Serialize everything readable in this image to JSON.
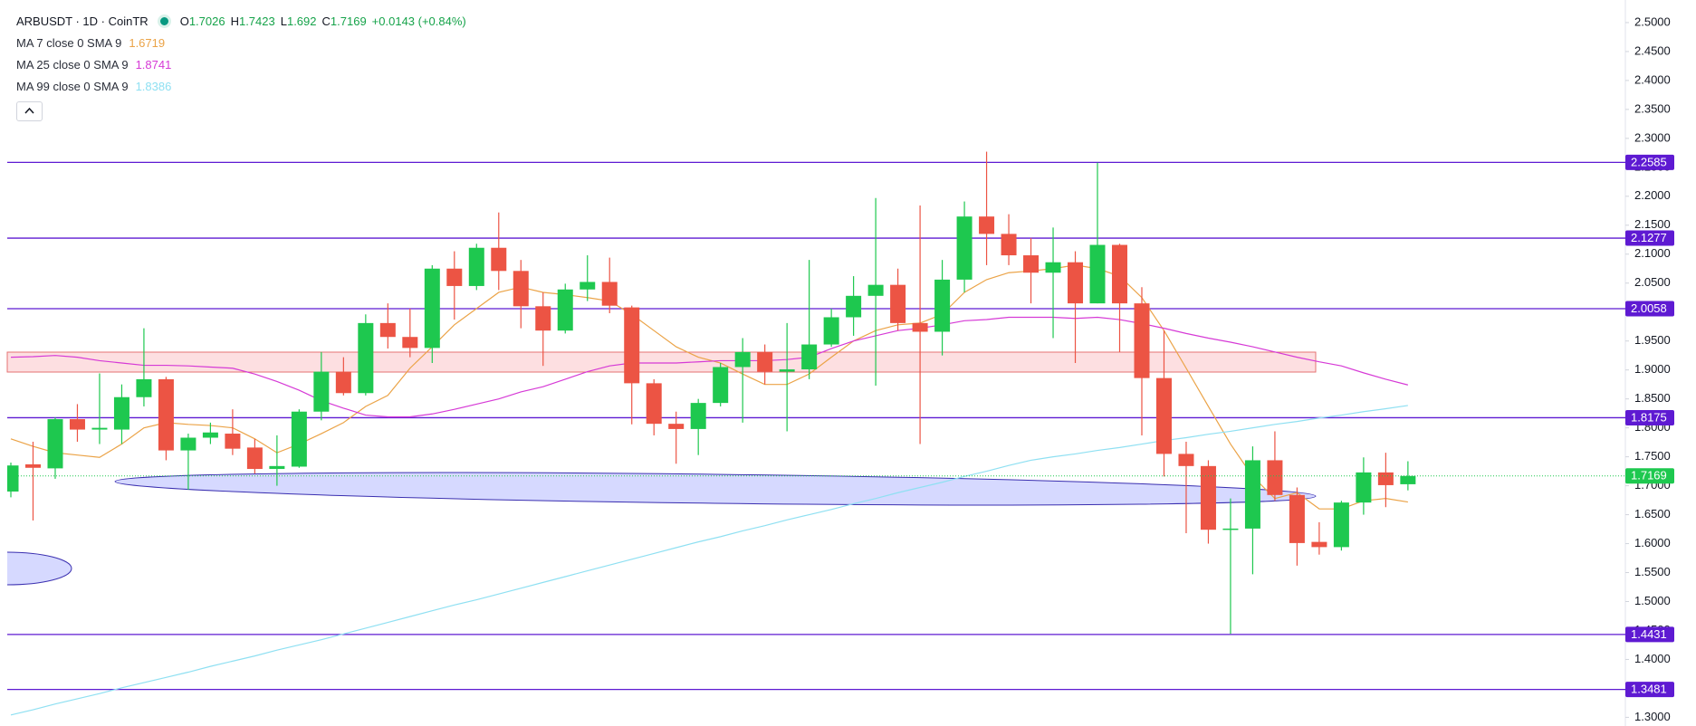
{
  "chart_data": {
    "type": "candlestick",
    "title": "ARBUSDT · 1D · CoinTR",
    "ohlc_prefixes": [
      "O",
      "H",
      "L",
      "C"
    ],
    "change": "+0.0143 (+0.84%)",
    "up_color": "#1ec84f",
    "down_color": "#ec5444",
    "open": [
      1.69,
      1.737,
      1.73,
      1.815,
      1.797,
      1.797,
      1.853,
      1.884,
      1.761,
      1.783,
      1.79,
      1.766,
      1.729,
      1.733,
      1.828,
      1.897,
      1.86,
      1.981,
      1.957,
      1.938,
      2.075,
      2.045,
      2.111,
      2.071,
      2.01,
      1.968,
      2.039,
      2.052,
      2.008,
      1.877,
      1.807,
      1.798,
      1.843,
      1.905,
      1.931,
      1.897,
      1.901,
      1.944,
      1.991,
      2.028,
      2.047,
      1.981,
      1.966,
      2.056,
      2.165,
      2.135,
      2.098,
      2.068,
      2.086,
      2.015,
      2.116,
      2.015,
      1.886,
      1.755,
      1.734,
      1.624,
      1.626,
      1.744,
      1.684,
      1.603,
      1.594,
      1.671,
      1.723,
      1.7026
    ],
    "high": [
      1.74,
      1.776,
      1.818,
      1.841,
      1.894,
      1.875,
      1.972,
      1.888,
      1.79,
      1.809,
      1.832,
      1.781,
      1.787,
      1.832,
      1.931,
      1.922,
      1.996,
      2.015,
      2.006,
      2.081,
      2.105,
      2.118,
      2.172,
      2.09,
      2.034,
      2.049,
      2.098,
      2.094,
      2.011,
      1.884,
      1.828,
      1.85,
      1.912,
      1.955,
      1.944,
      1.981,
      2.09,
      2.006,
      2.062,
      2.197,
      2.075,
      2.184,
      2.09,
      2.191,
      2.277,
      2.169,
      2.128,
      2.146,
      2.105,
      2.258,
      2.118,
      2.043,
      1.968,
      1.776,
      1.744,
      1.678,
      1.768,
      1.794,
      1.697,
      1.637,
      1.674,
      1.749,
      1.757,
      1.7423
    ],
    "low": [
      1.68,
      1.64,
      1.712,
      1.776,
      1.772,
      1.772,
      1.837,
      1.744,
      1.693,
      1.772,
      1.753,
      1.721,
      1.7,
      1.731,
      1.813,
      1.856,
      1.856,
      1.937,
      1.922,
      1.912,
      1.987,
      2.038,
      2.038,
      1.972,
      1.907,
      1.963,
      2.019,
      1.998,
      1.806,
      1.787,
      1.738,
      1.753,
      1.837,
      1.809,
      1.875,
      1.794,
      1.884,
      1.94,
      1.959,
      1.873,
      1.968,
      1.772,
      1.925,
      2.034,
      2.081,
      2.081,
      2.015,
      1.955,
      1.912,
      2.015,
      1.931,
      1.787,
      1.716,
      1.618,
      1.6,
      1.444,
      1.547,
      1.674,
      1.562,
      1.581,
      1.588,
      1.65,
      1.663,
      1.692
    ],
    "close": [
      1.735,
      1.731,
      1.815,
      1.797,
      1.8,
      1.853,
      1.884,
      1.761,
      1.783,
      1.792,
      1.764,
      1.729,
      1.734,
      1.828,
      1.897,
      1.86,
      1.981,
      1.957,
      1.938,
      2.075,
      2.045,
      2.111,
      2.071,
      2.01,
      1.968,
      2.039,
      2.052,
      2.011,
      1.877,
      1.807,
      1.798,
      1.843,
      1.905,
      1.931,
      1.897,
      1.901,
      1.944,
      1.991,
      2.028,
      2.047,
      1.981,
      1.966,
      2.056,
      2.165,
      2.135,
      2.098,
      2.068,
      2.086,
      2.015,
      2.116,
      2.015,
      1.886,
      1.755,
      1.734,
      1.624,
      1.626,
      1.744,
      1.684,
      1.601,
      1.594,
      1.671,
      1.723,
      1.701,
      1.7169
    ],
    "series": [
      {
        "name": "MA 7 close 0 SMA 9",
        "color": "#eba347",
        "values": [
          1.781,
          1.768,
          1.757,
          1.753,
          1.749,
          1.772,
          1.8,
          1.809,
          1.806,
          1.804,
          1.8,
          1.781,
          1.757,
          1.772,
          1.79,
          1.809,
          1.837,
          1.856,
          1.903,
          1.94,
          1.978,
          2.006,
          2.034,
          2.043,
          2.034,
          2.03,
          2.025,
          2.019,
          1.996,
          1.968,
          1.94,
          1.922,
          1.912,
          1.893,
          1.875,
          1.875,
          1.893,
          1.922,
          1.95,
          1.968,
          1.978,
          1.981,
          1.996,
          2.034,
          2.056,
          2.068,
          2.071,
          2.075,
          2.081,
          2.075,
          2.062,
          2.025,
          1.968,
          1.903,
          1.837,
          1.772,
          1.716,
          1.678,
          1.688,
          1.66,
          1.66,
          1.674,
          1.678,
          1.6719
        ]
      },
      {
        "name": "MA 25 close 0 SMA 9",
        "color": "#d63ad6",
        "values": [
          1.922,
          1.923,
          1.925,
          1.922,
          1.916,
          1.912,
          1.908,
          1.908,
          1.907,
          1.905,
          1.903,
          1.893,
          1.88,
          1.865,
          1.847,
          1.834,
          1.822,
          1.819,
          1.819,
          1.824,
          1.832,
          1.841,
          1.85,
          1.862,
          1.871,
          1.884,
          1.897,
          1.907,
          1.912,
          1.912,
          1.912,
          1.914,
          1.916,
          1.916,
          1.916,
          1.918,
          1.922,
          1.937,
          1.95,
          1.959,
          1.968,
          1.972,
          1.978,
          1.985,
          1.987,
          1.991,
          1.991,
          1.991,
          1.989,
          1.991,
          1.987,
          1.98,
          1.972,
          1.963,
          1.955,
          1.948,
          1.94,
          1.931,
          1.922,
          1.914,
          1.907,
          1.895,
          1.884,
          1.8741
        ]
      },
      {
        "name": "MA 99 close 0 SMA 9",
        "color": "#8fe0f2",
        "values": [
          1.304,
          1.313,
          1.323,
          1.332,
          1.341,
          1.351,
          1.36,
          1.369,
          1.378,
          1.388,
          1.397,
          1.406,
          1.416,
          1.425,
          1.434,
          1.444,
          1.454,
          1.464,
          1.474,
          1.484,
          1.494,
          1.503,
          1.513,
          1.523,
          1.533,
          1.543,
          1.553,
          1.563,
          1.573,
          1.583,
          1.593,
          1.603,
          1.612,
          1.622,
          1.631,
          1.641,
          1.65,
          1.659,
          1.669,
          1.678,
          1.688,
          1.697,
          1.706,
          1.716,
          1.725,
          1.735,
          1.744,
          1.75,
          1.755,
          1.761,
          1.766,
          1.772,
          1.778,
          1.783,
          1.789,
          1.794,
          1.8,
          1.806,
          1.811,
          1.817,
          1.822,
          1.828,
          1.833,
          1.8386
        ]
      }
    ],
    "levels": [
      2.2585,
      2.1277,
      2.0058,
      1.8175,
      1.4431,
      1.3481
    ],
    "level_color": "#5e1ad2",
    "ylim": [
      1.285,
      2.539
    ],
    "yticks": [
      {
        "value": 1.3,
        "label": "1.3000"
      },
      {
        "value": 1.35,
        "label": "1.3500"
      },
      {
        "value": 1.4,
        "label": "1.4000"
      },
      {
        "value": 1.45,
        "label": "1.4500"
      },
      {
        "value": 1.5,
        "label": "1.5000"
      },
      {
        "value": 1.55,
        "label": "1.5500"
      },
      {
        "value": 1.6,
        "label": "1.6000"
      },
      {
        "value": 1.65,
        "label": "1.6500"
      },
      {
        "value": 1.7,
        "label": "1.7000"
      },
      {
        "value": 1.75,
        "label": "1.7500"
      },
      {
        "value": 1.8,
        "label": "1.8000"
      },
      {
        "value": 1.85,
        "label": "1.8500"
      },
      {
        "value": 1.9,
        "label": "1.9000"
      },
      {
        "value": 1.95,
        "label": "1.9500"
      },
      {
        "value": 2.0,
        "label": "2.0000"
      },
      {
        "value": 2.05,
        "label": "2.0500"
      },
      {
        "value": 2.1,
        "label": "2.1000"
      },
      {
        "value": 2.15,
        "label": "2.1500"
      },
      {
        "value": 2.2,
        "label": "2.2000"
      },
      {
        "value": 2.25,
        "label": "2.2500"
      },
      {
        "value": 2.3,
        "label": "2.3000"
      },
      {
        "value": 2.35,
        "label": "2.3500"
      },
      {
        "value": 2.4,
        "label": "2.4000"
      },
      {
        "value": 2.45,
        "label": "2.4500"
      },
      {
        "value": 2.5,
        "label": "2.5000"
      }
    ],
    "grid": false
  }
}
